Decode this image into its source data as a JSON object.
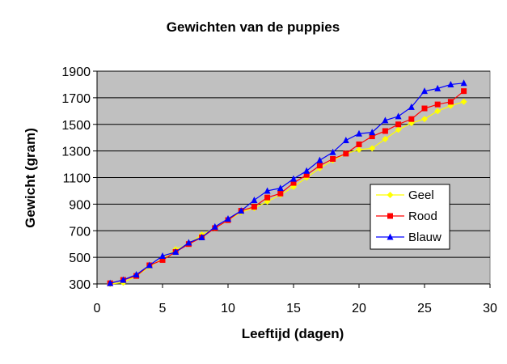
{
  "chart_data": {
    "type": "line",
    "title": "Gewichten van de puppies",
    "xlabel": "Leeftijd (dagen)",
    "ylabel": "Gewicht (gram)",
    "xlim": [
      0,
      30
    ],
    "ylim": [
      300,
      1900
    ],
    "xticks": [
      0,
      5,
      10,
      15,
      20,
      25,
      30
    ],
    "yticks": [
      300,
      500,
      700,
      900,
      1100,
      1300,
      1500,
      1700,
      1900
    ],
    "grid": "horizontal",
    "legend_position": "right",
    "plot_background": "#c0c0c0",
    "x": [
      1,
      2,
      3,
      4,
      5,
      6,
      7,
      8,
      9,
      10,
      11,
      12,
      13,
      14,
      15,
      16,
      17,
      18,
      19,
      20,
      21,
      22,
      23,
      24,
      25,
      26,
      27,
      28
    ],
    "series": [
      {
        "name": "Geel",
        "color": "#ffff00",
        "marker": "diamond",
        "values": [
          300,
          310,
          360,
          430,
          490,
          560,
          600,
          670,
          720,
          780,
          840,
          870,
          920,
          970,
          1030,
          1100,
          1170,
          1230,
          1280,
          1310,
          1320,
          1390,
          1460,
          1510,
          1540,
          1600,
          1640,
          1670
        ]
      },
      {
        "name": "Rood",
        "color": "#ff0000",
        "marker": "square",
        "values": [
          305,
          330,
          360,
          440,
          480,
          540,
          600,
          650,
          720,
          780,
          850,
          880,
          950,
          980,
          1060,
          1120,
          1190,
          1240,
          1280,
          1350,
          1410,
          1450,
          1500,
          1540,
          1620,
          1650,
          1670,
          1750
        ]
      },
      {
        "name": "Blauw",
        "color": "#0000ff",
        "marker": "triangle",
        "values": [
          305,
          330,
          370,
          440,
          510,
          540,
          610,
          650,
          730,
          790,
          850,
          930,
          1000,
          1020,
          1090,
          1150,
          1230,
          1290,
          1380,
          1430,
          1440,
          1530,
          1560,
          1630,
          1750,
          1770,
          1800,
          1810
        ]
      }
    ]
  }
}
